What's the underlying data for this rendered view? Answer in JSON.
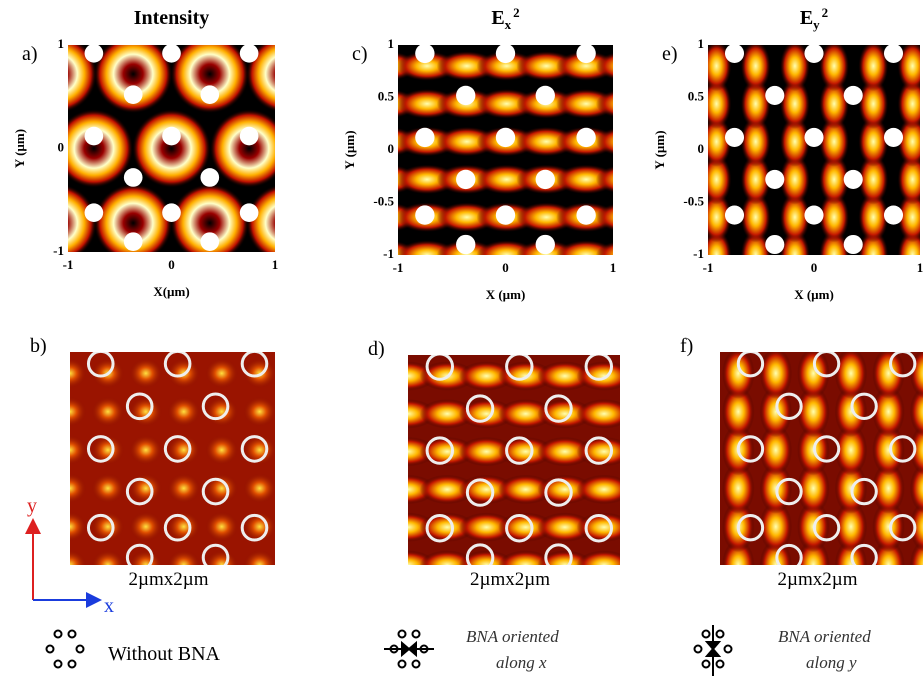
{
  "panels": [
    {
      "label": "a)",
      "title": {
        "base": "Intensity"
      },
      "x_label": "X(µm)",
      "y_label": "Y (µm)",
      "xticks": [
        -1,
        0,
        1
      ],
      "yticks": [
        1,
        0,
        -1
      ]
    },
    {
      "label": "c)",
      "title": {
        "base": "E",
        "sub": "x",
        "sup": "2"
      },
      "x_label": "X (µm)",
      "y_label": "Y (µm)",
      "xticks": [
        -1,
        0,
        1
      ],
      "yticks": [
        1,
        0.5,
        0,
        -0.5,
        -1
      ]
    },
    {
      "label": "e)",
      "title": {
        "base": "E",
        "sub": "y",
        "sup": "2"
      },
      "x_label": "X (µm)",
      "y_label": "Y (µm)",
      "xticks": [
        -1,
        0,
        1
      ],
      "yticks": [
        1,
        0.5,
        0,
        -0.5,
        -1
      ]
    }
  ],
  "images": [
    {
      "label": "b)",
      "caption": "2µmx2µm"
    },
    {
      "label": "d)",
      "caption": "2µmx2µm"
    },
    {
      "label": "f)",
      "caption": "2µmx2µm"
    }
  ],
  "axes_key": {
    "y": "y",
    "x": "x"
  },
  "legend": [
    {
      "line1": "Without BNA"
    },
    {
      "line1": "BNA oriented",
      "line2": "along x"
    },
    {
      "line1": "BNA oriented",
      "line2": "along y"
    }
  ]
}
